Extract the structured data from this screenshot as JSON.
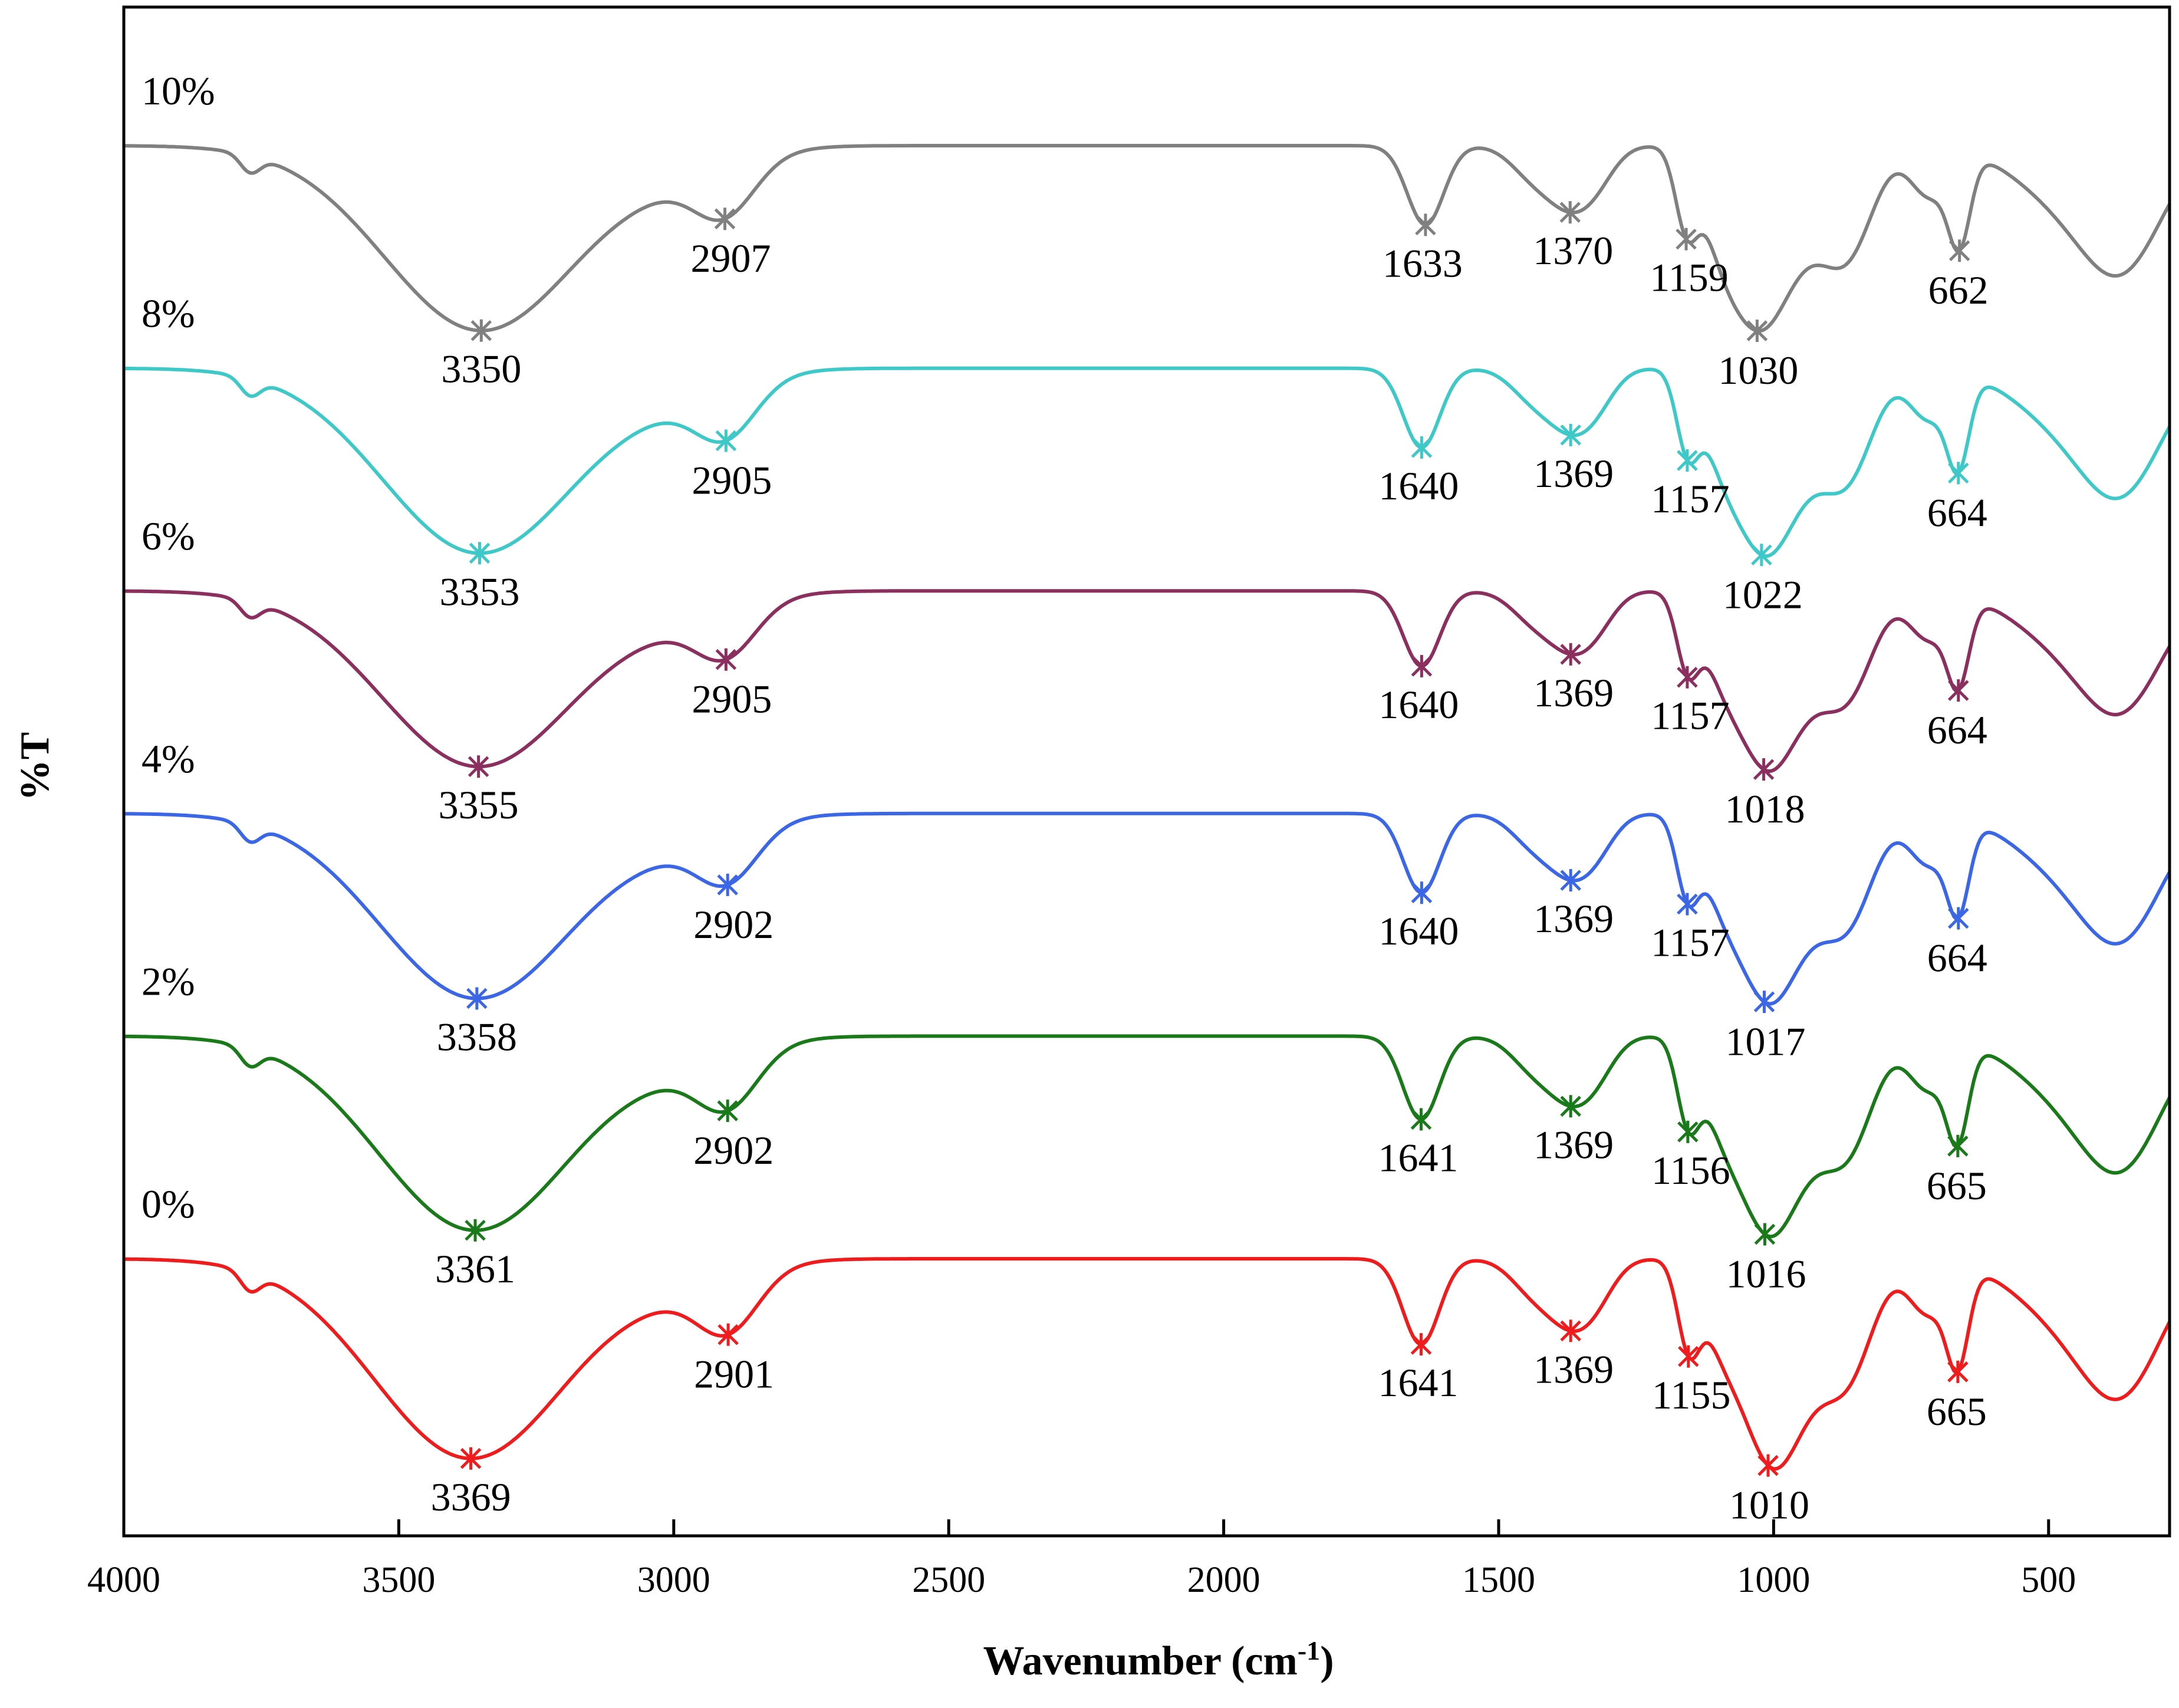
{
  "chart_data": {
    "type": "line",
    "title": "",
    "xlabel": "Wavenumber (cm",
    "xlabel_superscript": "-1",
    "xlabel_suffix": ")",
    "ylabel": "%T",
    "xlim": [
      4000,
      280
    ],
    "x_reversed": true,
    "x_ticks": [
      4000,
      3500,
      3000,
      2500,
      2000,
      1500,
      1000,
      500
    ],
    "x_tick_labels": [
      "4000",
      "3500",
      "3000",
      "2500",
      "2000",
      "1500",
      "1000",
      "500"
    ],
    "y_ticks_shown": false,
    "grid": false,
    "legend": "none (series labeled inline at upper-left of each trace)",
    "series": [
      {
        "name": "10%",
        "color": "#808080",
        "baseline": 10.0,
        "depth_scale": 1.0,
        "peaks": [
          3350,
          2907,
          1633,
          1370,
          1159,
          1030,
          662
        ],
        "peak_labels": [
          "3350",
          "2907",
          "1633",
          "1370",
          "1159",
          "1030",
          "662"
        ]
      },
      {
        "name": "8%",
        "color": "#3ec8c8",
        "baseline": 8.0,
        "depth_scale": 1.0,
        "peaks": [
          3353,
          2905,
          1640,
          1369,
          1157,
          1022,
          664
        ],
        "peak_labels": [
          "3353",
          "2905",
          "1640",
          "1369",
          "1157",
          "1022",
          "664"
        ]
      },
      {
        "name": "6%",
        "color": "#8b2f5f",
        "baseline": 6.0,
        "depth_scale": 0.95,
        "peaks": [
          3355,
          2905,
          1640,
          1369,
          1157,
          1018,
          664
        ],
        "peak_labels": [
          "3355",
          "2905",
          "1640",
          "1369",
          "1157",
          "1018",
          "664"
        ]
      },
      {
        "name": "4%",
        "color": "#3b66e6",
        "baseline": 4.0,
        "depth_scale": 1.0,
        "peaks": [
          3358,
          2902,
          1640,
          1369,
          1157,
          1017,
          664
        ],
        "peak_labels": [
          "3358",
          "2902",
          "1640",
          "1369",
          "1157",
          "1017",
          "664"
        ]
      },
      {
        "name": "2%",
        "color": "#1a7a1a",
        "baseline": 2.0,
        "depth_scale": 1.05,
        "peaks": [
          3361,
          2902,
          1641,
          1369,
          1156,
          1016,
          665
        ],
        "peak_labels": [
          "3361",
          "2902",
          "1641",
          "1369",
          "1156",
          "1016",
          "665"
        ]
      },
      {
        "name": "0%",
        "color": "#ee1c1c",
        "baseline": 0.0,
        "depth_scale": 1.08,
        "peaks": [
          3369,
          2901,
          1641,
          1369,
          1155,
          1010,
          665
        ],
        "peak_labels": [
          "3369",
          "2901",
          "1641",
          "1369",
          "1155",
          "1010",
          "665"
        ]
      }
    ]
  }
}
